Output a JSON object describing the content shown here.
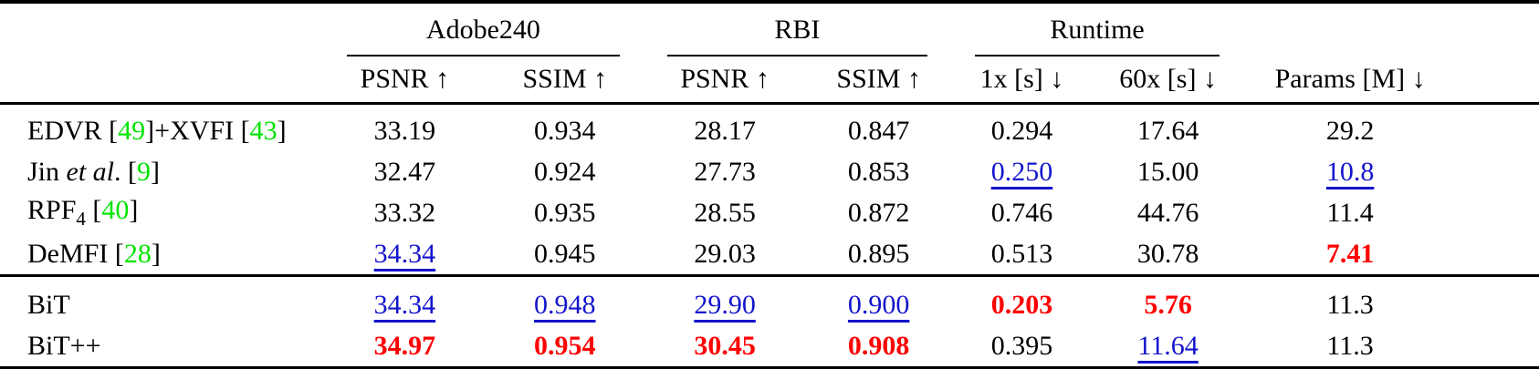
{
  "colors": {
    "cite": "#00e400",
    "best": "#fe0000",
    "second_best": "#1414cc",
    "text": "#000000",
    "rule": "#000000"
  },
  "header": {
    "groups": [
      {
        "label": "Adobe240"
      },
      {
        "label": "RBI"
      },
      {
        "label": "Runtime"
      }
    ],
    "subheaders": [
      "PSNR ↑",
      "SSIM ↑",
      "PSNR ↑",
      "SSIM ↑",
      "1x [s] ↓",
      "60x [s] ↓",
      "Params [M] ↓"
    ]
  },
  "table": {
    "rows": [
      {
        "section_start": false,
        "method": [
          {
            "text": "EDVR ["
          },
          {
            "text": "49",
            "color": "cite"
          },
          {
            "text": "]+XVFI ["
          },
          {
            "text": "43",
            "color": "cite"
          },
          {
            "text": "]"
          }
        ],
        "cells": [
          {
            "text": "33.19",
            "style": "plain"
          },
          {
            "text": "0.934",
            "style": "plain"
          },
          {
            "text": "28.17",
            "style": "plain"
          },
          {
            "text": "0.847",
            "style": "plain"
          },
          {
            "text": "0.294",
            "style": "plain"
          },
          {
            "text": "17.64",
            "style": "plain"
          },
          {
            "text": "29.2",
            "style": "plain"
          }
        ]
      },
      {
        "section_start": false,
        "method": [
          {
            "text": "Jin "
          },
          {
            "text": "et al",
            "italic": true
          },
          {
            "text": ". ["
          },
          {
            "text": "9",
            "color": "cite"
          },
          {
            "text": "]"
          }
        ],
        "cells": [
          {
            "text": "32.47",
            "style": "plain"
          },
          {
            "text": "0.924",
            "style": "plain"
          },
          {
            "text": "27.73",
            "style": "plain"
          },
          {
            "text": "0.853",
            "style": "plain"
          },
          {
            "text": "0.250",
            "style": "second"
          },
          {
            "text": "15.00",
            "style": "plain"
          },
          {
            "text": "10.8",
            "style": "second"
          }
        ]
      },
      {
        "section_start": false,
        "method": [
          {
            "text": "RPF"
          },
          {
            "text": "4",
            "sub": true
          },
          {
            "text": " ["
          },
          {
            "text": "40",
            "color": "cite"
          },
          {
            "text": "]"
          }
        ],
        "cells": [
          {
            "text": "33.32",
            "style": "plain"
          },
          {
            "text": "0.935",
            "style": "plain"
          },
          {
            "text": "28.55",
            "style": "plain"
          },
          {
            "text": "0.872",
            "style": "plain"
          },
          {
            "text": "0.746",
            "style": "plain"
          },
          {
            "text": "44.76",
            "style": "plain"
          },
          {
            "text": "11.4",
            "style": "plain"
          }
        ]
      },
      {
        "section_start": false,
        "method": [
          {
            "text": "DeMFI ["
          },
          {
            "text": "28",
            "color": "cite"
          },
          {
            "text": "]"
          }
        ],
        "cells": [
          {
            "text": "34.34",
            "style": "second"
          },
          {
            "text": "0.945",
            "style": "plain"
          },
          {
            "text": "29.03",
            "style": "plain"
          },
          {
            "text": "0.895",
            "style": "plain"
          },
          {
            "text": "0.513",
            "style": "plain"
          },
          {
            "text": "30.78",
            "style": "plain"
          },
          {
            "text": "7.41",
            "style": "best"
          }
        ]
      },
      {
        "section_start": true,
        "method": [
          {
            "text": "BiT"
          }
        ],
        "cells": [
          {
            "text": "34.34",
            "style": "second"
          },
          {
            "text": "0.948",
            "style": "second"
          },
          {
            "text": "29.90",
            "style": "second"
          },
          {
            "text": "0.900",
            "style": "second"
          },
          {
            "text": "0.203",
            "style": "best"
          },
          {
            "text": "5.76",
            "style": "best"
          },
          {
            "text": "11.3",
            "style": "plain"
          }
        ]
      },
      {
        "section_start": false,
        "method": [
          {
            "text": "BiT++"
          }
        ],
        "cells": [
          {
            "text": "34.97",
            "style": "best"
          },
          {
            "text": "0.954",
            "style": "best"
          },
          {
            "text": "30.45",
            "style": "best"
          },
          {
            "text": "0.908",
            "style": "best"
          },
          {
            "text": "0.395",
            "style": "plain"
          },
          {
            "text": "11.64",
            "style": "second"
          },
          {
            "text": "11.3",
            "style": "plain"
          }
        ]
      }
    ]
  }
}
